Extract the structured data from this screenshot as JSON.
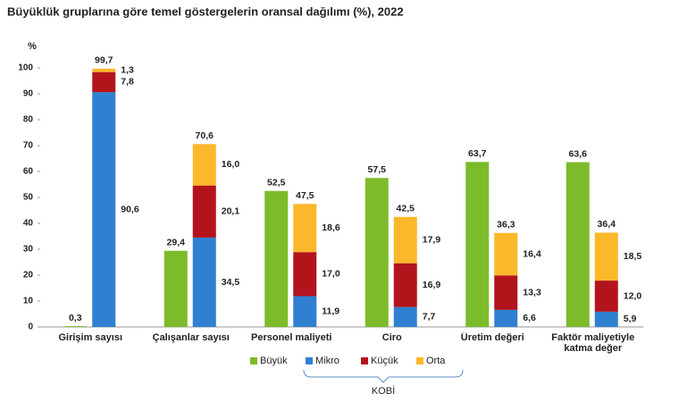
{
  "chart_data": {
    "type": "grouped_stacked_bar",
    "title": "Büyüklük gruplarına göre temel göstergelerin oransal dağılımı (%), 2022",
    "y_label": "%",
    "categories": [
      "Girişim sayısı",
      "Çalışanlar sayısı",
      "Personel maliyeti",
      "Ciro",
      "Üretim değeri",
      "Faktör maliyetiyle katma değer"
    ],
    "ylim": [
      0,
      100
    ],
    "yticks": [
      0,
      10,
      20,
      30,
      40,
      50,
      60,
      70,
      80,
      90,
      100
    ],
    "series": [
      {
        "name": "Büyük",
        "color": "#7cbb2a",
        "stack": false,
        "values": [
          0.3,
          29.4,
          52.5,
          57.5,
          63.7,
          63.6
        ],
        "value_labels": [
          "0,3",
          "29,4",
          "52,5",
          "57,5",
          "63,7",
          "63,6"
        ]
      },
      {
        "name": "Mikro",
        "color": "#2f80d1",
        "stack": true,
        "values": [
          90.6,
          34.5,
          11.9,
          7.7,
          6.6,
          5.9
        ],
        "value_labels": [
          "90,6",
          "34,5",
          "11,9",
          "7,7",
          "6,6",
          "5,9"
        ]
      },
      {
        "name": "Küçük",
        "color": "#b3141c",
        "stack": true,
        "values": [
          7.8,
          20.1,
          17.0,
          16.9,
          13.3,
          12.0
        ],
        "value_labels": [
          "7,8",
          "20,1",
          "17,0",
          "16,9",
          "13,3",
          "12,0"
        ]
      },
      {
        "name": "Orta",
        "color": "#fbb82a",
        "stack": true,
        "values": [
          1.3,
          16.0,
          18.6,
          17.9,
          16.4,
          18.5
        ],
        "value_labels": [
          "1,3",
          "16,0",
          "18,6",
          "17,9",
          "16,4",
          "18,5"
        ]
      }
    ],
    "kobi": {
      "label": "KOBİ",
      "totals": [
        99.7,
        70.6,
        47.5,
        42.5,
        36.3,
        36.4
      ],
      "value_labels": [
        "99,7",
        "70,6",
        "47,5",
        "42,5",
        "36,3",
        "36,4"
      ]
    }
  }
}
